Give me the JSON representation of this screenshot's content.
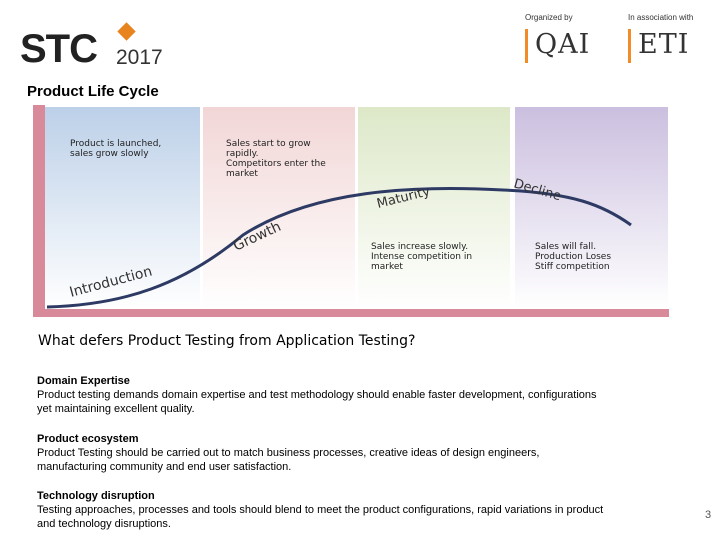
{
  "header": {
    "logo_text": "STC",
    "logo_year": "2017",
    "organized_by_label": "Organized by",
    "organized_by_name": "QAI",
    "association_label": "In association with",
    "association_name": "ETI"
  },
  "slide": {
    "title": "Product Life Cycle",
    "page_number": "3"
  },
  "diagram": {
    "phases": [
      {
        "name": "Introduction",
        "description": [
          "Product is launched,",
          "sales grow slowly"
        ],
        "color": "#bcd0e8"
      },
      {
        "name": "Growth",
        "description": [
          "Sales start to grow",
          "rapidly.",
          "Competitors enter the",
          "market"
        ],
        "color": "#f2d6d6"
      },
      {
        "name": "Maturity",
        "description": [
          "Sales increase slowly.",
          "Intense competition in",
          "market"
        ],
        "color": "#dde8c8"
      },
      {
        "name": "Decline",
        "description": [
          "Sales will fall.",
          "Production Loses",
          "Stiff competition"
        ],
        "color": "#cbbfdf"
      }
    ],
    "axis_color": "#d98a9a",
    "curve_color": "#2d3a63"
  },
  "question": "What defers Product Testing from Application Testing?",
  "sections": [
    {
      "heading": "Domain Expertise",
      "lines": [
        "Product testing demands domain expertise and test methodology should enable faster development, configurations",
        "yet maintaining excellent quality."
      ]
    },
    {
      "heading": "Product ecosystem",
      "lines": [
        "Product Testing should be carried out to match business processes, creative ideas of design engineers,",
        "manufacturing community and end user satisfaction."
      ]
    },
    {
      "heading": "Technology disruption",
      "lines": [
        "Testing approaches, processes and tools should blend to meet the product configurations, rapid variations in product",
        "and technology disruptions."
      ]
    }
  ]
}
